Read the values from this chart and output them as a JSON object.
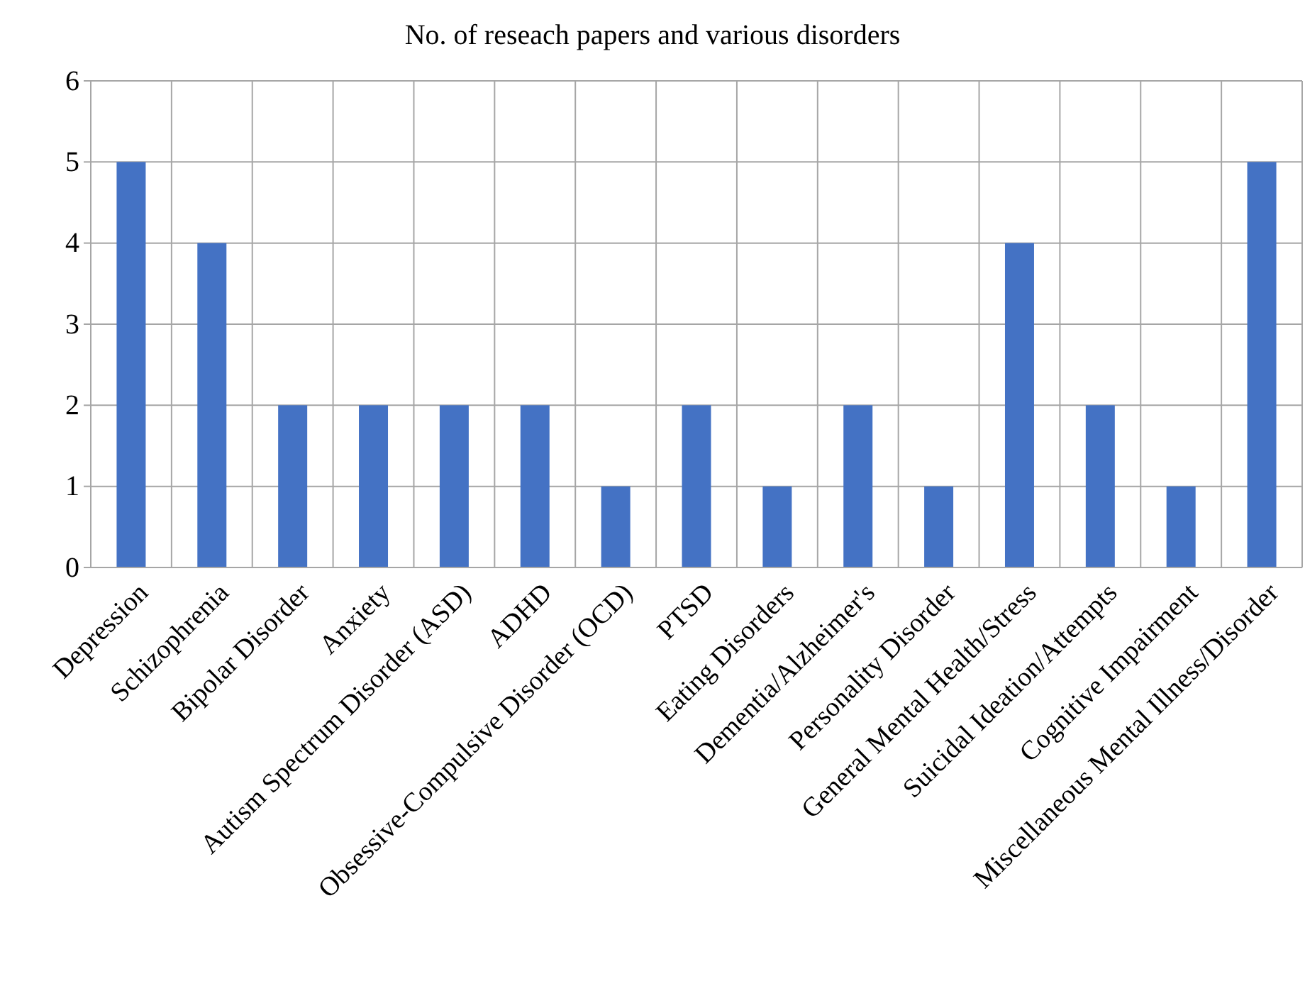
{
  "chart_data": {
    "type": "bar",
    "title": "No. of reseach papers and various disorders",
    "categories": [
      "Depression",
      "Schizophrenia",
      "Bipolar Disorder",
      "Anxiety",
      "Autism Spectrum Disorder (ASD)",
      "ADHD",
      "Obsessive-Compulsive Disorder (OCD)",
      "PTSD",
      "Eating Disorders",
      "Dementia/Alzheimer's",
      "Personality Disorder",
      "General Mental Health/Stress",
      "Suicidal Ideation/Attempts",
      "Cognitive Impairment",
      "Miscellaneous Mental Illness/Disorder"
    ],
    "values": [
      5,
      4,
      2,
      2,
      2,
      2,
      1,
      2,
      1,
      2,
      1,
      4,
      2,
      1,
      5
    ],
    "color": "#4472c4",
    "ylim": [
      0,
      6
    ],
    "yticks": [
      0,
      1,
      2,
      3,
      4,
      5,
      6
    ],
    "grid": true
  }
}
